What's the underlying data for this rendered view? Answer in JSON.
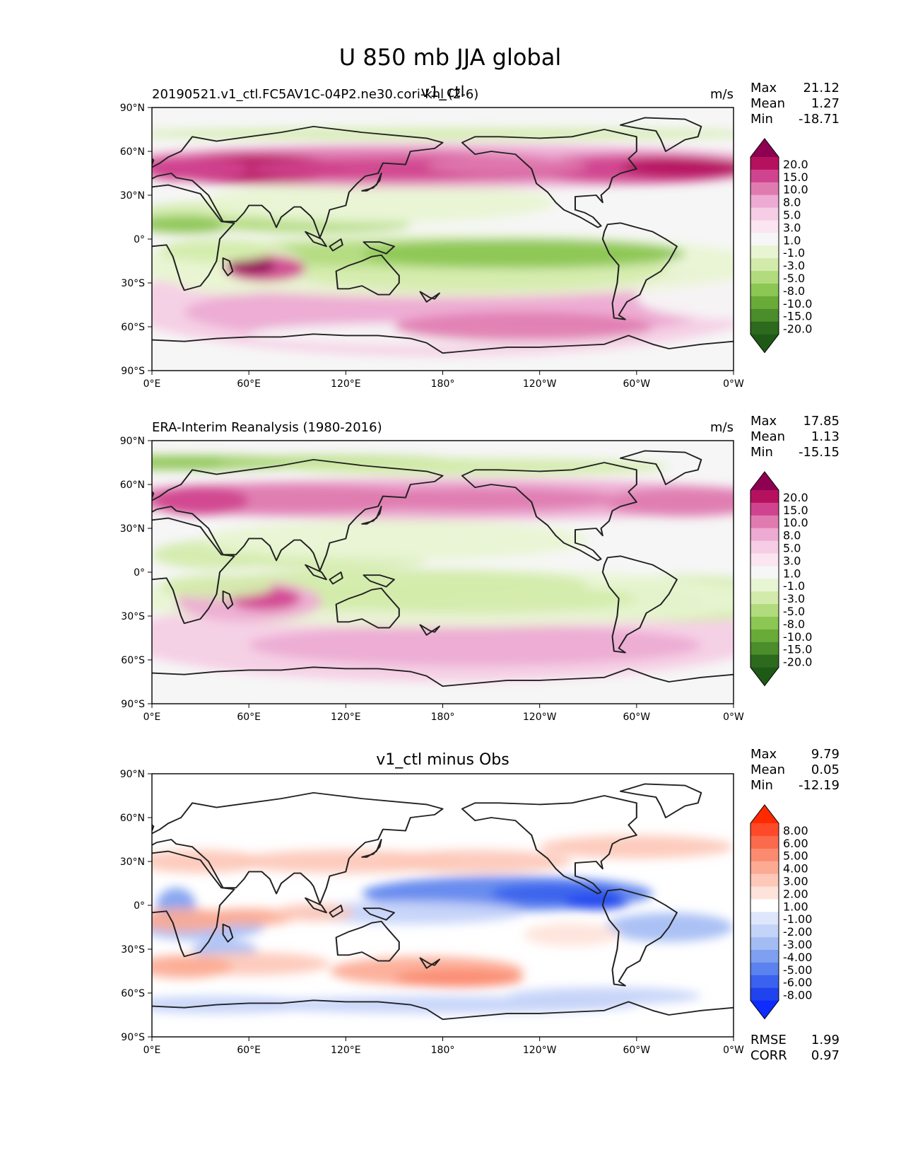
{
  "figure_title": "U 850 mb JJA global",
  "chart_data": [
    {
      "type": "heatmap",
      "panel": "test",
      "title_left": "20190521.v1_ctl.FC5AV1C-04P2.ne30.cori-knl (2-6)",
      "title_center": "v1_ctl",
      "title_right": "m/s",
      "stats": [
        {
          "label": "Max",
          "value": "21.12"
        },
        {
          "label": "Mean",
          "value": "1.27"
        },
        {
          "label": "Min",
          "value": "-18.71"
        }
      ],
      "colorbar_levels": [
        "20.0",
        "15.0",
        "10.0",
        "8.0",
        "5.0",
        "3.0",
        "1.0",
        "-1.0",
        "-3.0",
        "-5.0",
        "-8.0",
        "-10.0",
        "-15.0",
        "-20.0"
      ],
      "colorbar_colors": [
        "#8e0152",
        "#b5115f",
        "#d0438f",
        "#e07bb0",
        "#edaad2",
        "#f5cde4",
        "#fae5f0",
        "#f6f6f6",
        "#e8f5d3",
        "#d2ebaa",
        "#b2db7e",
        "#8cc653",
        "#6aab38",
        "#4b8c2b",
        "#2d6a1d",
        "#1e5a16"
      ],
      "xlim": [
        0,
        360
      ],
      "ylim": [
        -90,
        90
      ]
    },
    {
      "type": "heatmap",
      "panel": "reference",
      "title_left": "ERA-Interim Reanalysis (1980-2016)",
      "title_center": "",
      "title_right": "m/s",
      "stats": [
        {
          "label": "Max",
          "value": "17.85"
        },
        {
          "label": "Mean",
          "value": "1.13"
        },
        {
          "label": "Min",
          "value": "-15.15"
        }
      ],
      "colorbar_levels": [
        "20.0",
        "15.0",
        "10.0",
        "8.0",
        "5.0",
        "3.0",
        "1.0",
        "-1.0",
        "-3.0",
        "-5.0",
        "-8.0",
        "-10.0",
        "-15.0",
        "-20.0"
      ],
      "colorbar_colors": [
        "#8e0152",
        "#b5115f",
        "#d0438f",
        "#e07bb0",
        "#edaad2",
        "#f5cde4",
        "#fae5f0",
        "#f6f6f6",
        "#e8f5d3",
        "#d2ebaa",
        "#b2db7e",
        "#8cc653",
        "#6aab38",
        "#4b8c2b",
        "#2d6a1d",
        "#1e5a16"
      ],
      "xlim": [
        0,
        360
      ],
      "ylim": [
        -90,
        90
      ]
    },
    {
      "type": "heatmap",
      "panel": "difference",
      "title_left": "",
      "title_center": "v1_ctl minus Obs",
      "title_right": "",
      "stats": [
        {
          "label": "Max",
          "value": "9.79"
        },
        {
          "label": "Mean",
          "value": "0.05"
        },
        {
          "label": "Min",
          "value": "-12.19"
        }
      ],
      "extra_stats": [
        {
          "label": "RMSE",
          "value": "1.99"
        },
        {
          "label": "CORR",
          "value": "0.97"
        }
      ],
      "colorbar_levels": [
        "8.00",
        "6.00",
        "5.00",
        "4.00",
        "3.00",
        "2.00",
        "1.00",
        "-1.00",
        "-2.00",
        "-3.00",
        "-4.00",
        "-5.00",
        "-6.00",
        "-8.00"
      ],
      "colorbar_colors": [
        "#ff2a00",
        "#ff4a2a",
        "#fb6a4d",
        "#fb8b70",
        "#fcaa94",
        "#fdc8b8",
        "#fee3da",
        "#ffffff",
        "#dde6fb",
        "#c4d3f8",
        "#a4bcf4",
        "#7f9ff0",
        "#5b82ee",
        "#3a62ee",
        "#1f44ee",
        "#0f2cff"
      ],
      "xlim": [
        0,
        360
      ],
      "ylim": [
        -90,
        90
      ]
    }
  ],
  "axes": {
    "x_ticks": [
      "0°E",
      "60°E",
      "120°E",
      "180°",
      "120°W",
      "60°W",
      "0°W"
    ],
    "y_ticks": [
      "90°N",
      "60°N",
      "30°N",
      "0°",
      "30°S",
      "60°S",
      "90°S"
    ]
  }
}
